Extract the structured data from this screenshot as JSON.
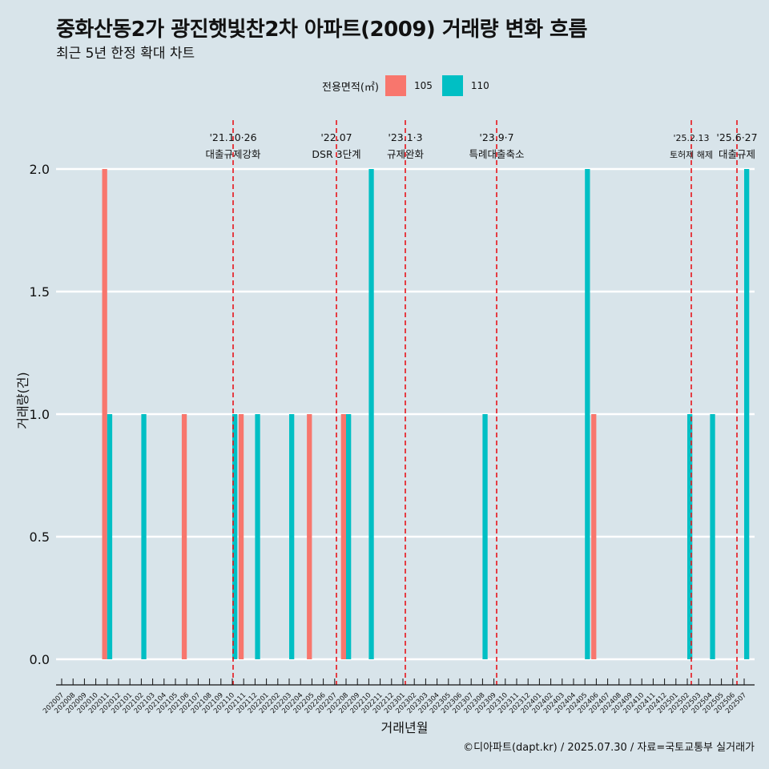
{
  "title": "중화산동2가 광진햇빛찬2차 아파트(2009) 거래량 변화 흐름",
  "subtitle": "최근 5년 한정 확대 차트",
  "legend": {
    "title": "전용면적(㎡)",
    "items": [
      {
        "label": "105",
        "color": "#f8766d"
      },
      {
        "label": "110",
        "color": "#00bfc4"
      }
    ]
  },
  "footer": "©디아파트(dapt.kr) / 2025.07.30 / 자료=국토교통부 실거래가",
  "chart_data": {
    "type": "bar",
    "xlabel": "거래년월",
    "ylabel": "거래량(건)",
    "ylim": [
      0,
      2
    ],
    "yticks": [
      0.0,
      0.5,
      1.0,
      1.5,
      2.0
    ],
    "ytick_labels": [
      "0.0",
      "0.5",
      "1.0",
      "1.5",
      "2.0"
    ],
    "grid": true,
    "legend_position": "top",
    "categories": [
      "202007",
      "202008",
      "202009",
      "202010",
      "202011",
      "202012",
      "202101",
      "202102",
      "202103",
      "202104",
      "202105",
      "202106",
      "202107",
      "202108",
      "202109",
      "202110",
      "202111",
      "202112",
      "202201",
      "202202",
      "202203",
      "202204",
      "202205",
      "202206",
      "202207",
      "202208",
      "202209",
      "202210",
      "202211",
      "202212",
      "202301",
      "202302",
      "202303",
      "202304",
      "202305",
      "202306",
      "202307",
      "202308",
      "202309",
      "202310",
      "202311",
      "202312",
      "202401",
      "202402",
      "202403",
      "202404",
      "202405",
      "202406",
      "202407",
      "202408",
      "202409",
      "202410",
      "202411",
      "202412",
      "202501",
      "202502",
      "202503",
      "202504",
      "202505",
      "202506",
      "202507"
    ],
    "series": [
      {
        "name": "105",
        "color": "#f8766d",
        "values": [
          0,
          0,
          0,
          0,
          2,
          0,
          0,
          0,
          0,
          0,
          0,
          1,
          0,
          0,
          0,
          0,
          1,
          0,
          0,
          0,
          0,
          0,
          1,
          0,
          0,
          1,
          0,
          0,
          0,
          0,
          0,
          0,
          0,
          0,
          0,
          0,
          0,
          0,
          0,
          0,
          0,
          0,
          0,
          0,
          0,
          0,
          0,
          1,
          0,
          0,
          0,
          0,
          0,
          0,
          0,
          0,
          0,
          0,
          0,
          0,
          0
        ]
      },
      {
        "name": "110",
        "color": "#00bfc4",
        "values": [
          0,
          0,
          0,
          0,
          1,
          0,
          0,
          1,
          0,
          0,
          0,
          0,
          0,
          0,
          0,
          1,
          0,
          1,
          0,
          0,
          1,
          0,
          0,
          0,
          0,
          1,
          0,
          2,
          0,
          0,
          0,
          0,
          0,
          0,
          0,
          0,
          0,
          1,
          0,
          0,
          0,
          0,
          0,
          0,
          0,
          0,
          2,
          0,
          0,
          0,
          0,
          0,
          0,
          0,
          0,
          1,
          0,
          1,
          0,
          0,
          2
        ]
      }
    ],
    "annotations": [
      {
        "date": "'21.10·26",
        "label": "대출규제강화",
        "x": "202110"
      },
      {
        "date": "'22.07",
        "label": "DSR 3단계",
        "x": "202207"
      },
      {
        "date": "'23.1·3",
        "label": "규제완화",
        "x": "202301"
      },
      {
        "date": "'23.9·7",
        "label": "특례대출축소",
        "x": "202309"
      },
      {
        "date": "'25.2.13",
        "label": "토허제 해제",
        "x": "202502"
      },
      {
        "date": "'25.6·27",
        "label": "대출규제",
        "x": "202506"
      }
    ]
  }
}
